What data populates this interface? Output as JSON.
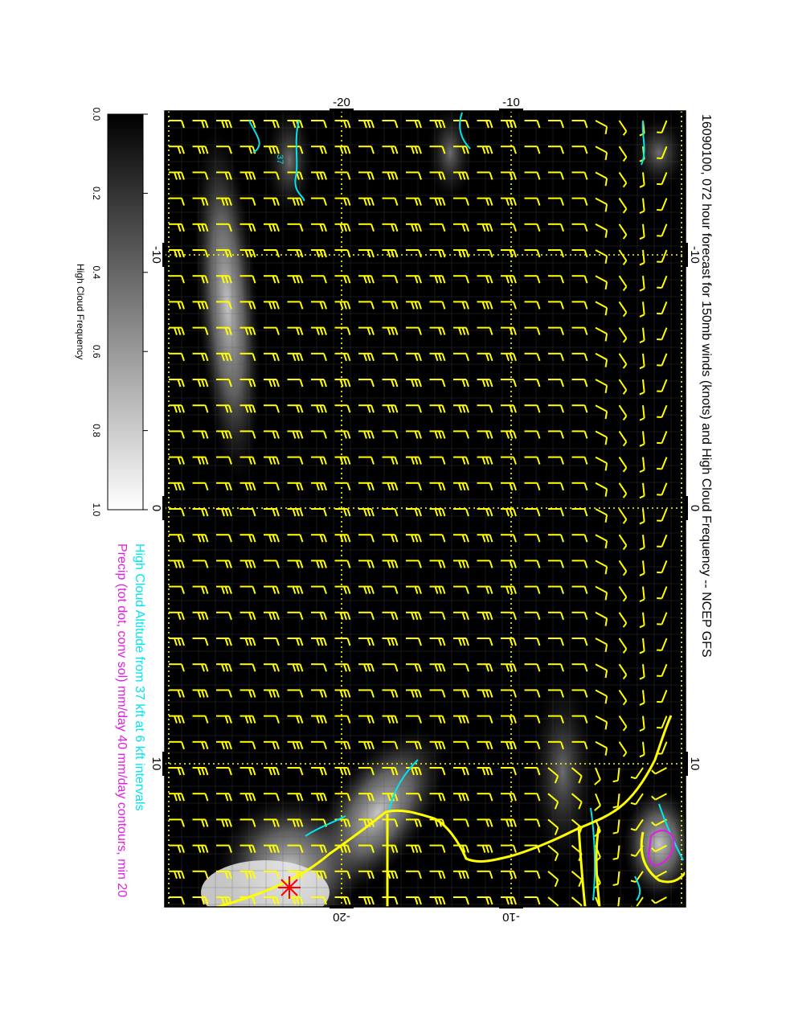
{
  "title": "16090100, 072 hour forecast for 150mb winds (knots) and High Cloud Frequency -- NCEP GFS",
  "legend": {
    "line1": "High Cloud Altitude from 37 kft at 6 kft intervals",
    "line2": "Precip (tot dot, conv sol) mm/day 40 mm/day contours, min 20",
    "line1_color": "#00e5ee",
    "line2_color": "#e020e0"
  },
  "colorbar": {
    "label": "High Cloud Frequency",
    "ticks": [
      "0.0",
      "0.2",
      "0.4",
      "0.6",
      "0.8",
      "1.0"
    ],
    "gradient_from": "#000000",
    "gradient_to": "#ffffff"
  },
  "map": {
    "top_axis_labels": [
      "-20",
      "-10"
    ],
    "bottom_axis_labels": [
      "-20",
      "-10"
    ],
    "left_axis_labels": [
      "-10",
      "0",
      "10"
    ],
    "right_axis_labels": [
      "-10",
      "0",
      "10"
    ],
    "contour_label": "37",
    "colors": {
      "barbs": "#ffff00",
      "coast": "#ffff00",
      "cloud_altitude": "#00e5ee",
      "precip": "#e020e0",
      "marker": "#ff0000",
      "background": "#000000"
    },
    "marker_icon": "asterisk-star-icon"
  }
}
